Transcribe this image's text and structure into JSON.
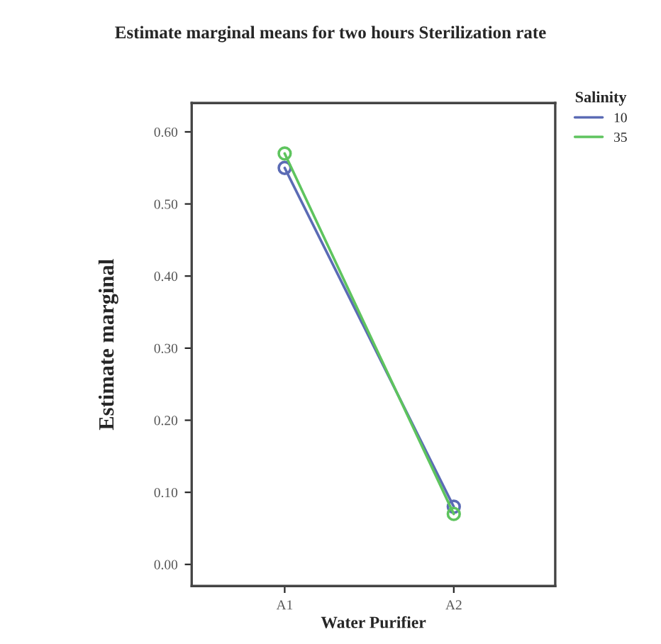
{
  "chart_data": {
    "type": "line",
    "title": "Estimate marginal means for two hours Sterilization rate",
    "xlabel": "Water Purifier",
    "ylabel": "Estimate marginal",
    "legend_title": "Salinity",
    "categories": [
      "A1",
      "A2"
    ],
    "series": [
      {
        "name": "10",
        "color": "#5b6bb5",
        "values": [
          0.55,
          0.08
        ]
      },
      {
        "name": "35",
        "color": "#5ec45e",
        "values": [
          0.57,
          0.07
        ]
      }
    ],
    "ylim": [
      -0.03,
      0.64
    ],
    "yticks": [
      {
        "value": 0,
        "label": "0.00"
      },
      {
        "value": 0.1,
        "label": "0.10"
      },
      {
        "value": 0.2,
        "label": "0.20"
      },
      {
        "value": 0.3,
        "label": "0.30"
      },
      {
        "value": 0.4,
        "label": "0.40"
      },
      {
        "value": 0.5,
        "label": "0.50"
      },
      {
        "value": 0.6,
        "label": "0.60"
      }
    ],
    "grid": false,
    "legend": "top right",
    "marker": "circle",
    "line_style": "solid"
  }
}
